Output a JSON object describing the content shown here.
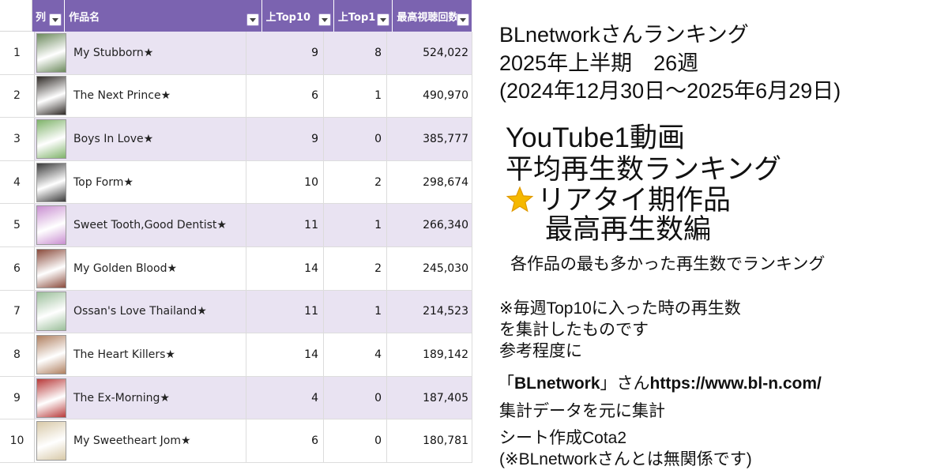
{
  "table": {
    "columns": [
      "列",
      "作品名",
      "上Top10",
      "上Top1",
      "最高視聴回数"
    ],
    "rows": [
      {
        "rank": "1",
        "title": "My Stubborn★",
        "top10": "9",
        "top1": "8",
        "max_views": "524,022",
        "poster_color": "#6c8a5d"
      },
      {
        "rank": "2",
        "title": "The Next Prince★",
        "top10": "6",
        "top1": "1",
        "max_views": "490,970",
        "poster_color": "#2f2a26"
      },
      {
        "rank": "3",
        "title": "Boys In Love★",
        "top10": "9",
        "top1": "0",
        "max_views": "385,777",
        "poster_color": "#7fb36a"
      },
      {
        "rank": "4",
        "title": "Top Form★",
        "top10": "10",
        "top1": "2",
        "max_views": "298,674",
        "poster_color": "#3a3a3a"
      },
      {
        "rank": "5",
        "title": "Sweet Tooth,Good Dentist★",
        "top10": "11",
        "top1": "1",
        "max_views": "266,340",
        "poster_color": "#c98fd1"
      },
      {
        "rank": "6",
        "title": "My Golden Blood★",
        "top10": "14",
        "top1": "2",
        "max_views": "245,030",
        "poster_color": "#8a4b3c"
      },
      {
        "rank": "7",
        "title": "Ossan's Love Thailand★",
        "top10": "11",
        "top1": "1",
        "max_views": "214,523",
        "poster_color": "#9bbf9a"
      },
      {
        "rank": "8",
        "title": "The Heart Killers★",
        "top10": "14",
        "top1": "4",
        "max_views": "189,142",
        "poster_color": "#b08060"
      },
      {
        "rank": "9",
        "title": "The Ex-Morning★",
        "top10": "4",
        "top1": "0",
        "max_views": "187,405",
        "poster_color": "#b83a3a"
      },
      {
        "rank": "10",
        "title": "My Sweetheart Jom★",
        "top10": "6",
        "top1": "0",
        "max_views": "180,781",
        "poster_color": "#d8c9a8"
      }
    ]
  },
  "panel": {
    "line1": "BLnetworkさんランキング",
    "line2": "2025年上半期　26週",
    "line3": "(2024年12月30日〜2025年6月29日)",
    "heading1": "YouTube1動画",
    "heading2": "平均再生数ランキング",
    "heading3": "リアタイ期作品",
    "heading4": "最高再生数編",
    "sub": "各作品の最も多かった再生数でランキング",
    "note1": "※毎週Top10に入った時の再生数",
    "note2": "を集計したものです",
    "note3": "参考程度に",
    "source_prefix": "「",
    "source_name": "BLnetwork",
    "source_mid": "」さん",
    "source_url": "https://www.bl-n.com/",
    "note4": "集計データを元に集計",
    "note5": "シート作成Cota2",
    "note6": "(※BLnetworkさんとは無関係です)",
    "star_icon": "star-icon",
    "star_color": "#f5b800"
  },
  "colors": {
    "header": "#7b63b0",
    "row_alt": "#e9e3f2"
  }
}
